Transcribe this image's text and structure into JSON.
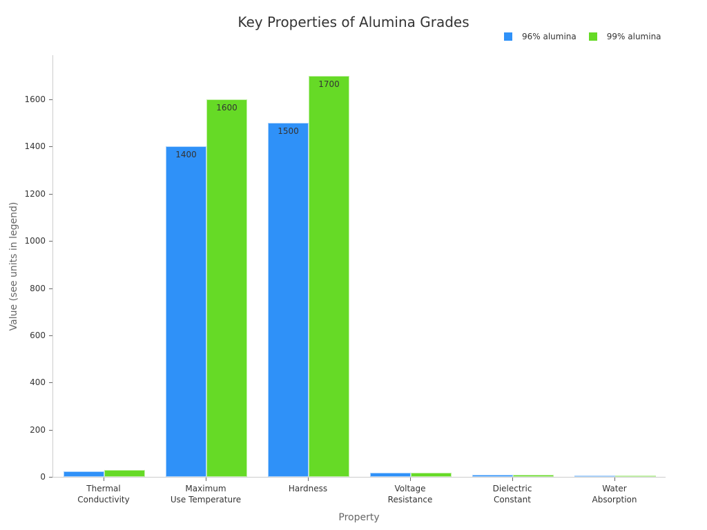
{
  "chart_data": {
    "type": "bar",
    "title": "Key Properties of Alumina Grades",
    "xlabel": "Property",
    "ylabel": "Value (see units in legend)",
    "categories": [
      "Thermal\nConductivity",
      "Maximum\nUse Temperature",
      "Hardness",
      "Voltage\nResistance",
      "Dielectric\nConstant",
      "Water\nAbsorption"
    ],
    "series": [
      {
        "name": "96% alumina",
        "color": "#2f91f8",
        "values": [
          24,
          1400,
          1500,
          17,
          9.5,
          0
        ]
      },
      {
        "name": "99% alumina",
        "color": "#66da26",
        "values": [
          30,
          1600,
          1700,
          18,
          9.8,
          0
        ]
      }
    ],
    "bar_labels_visible": [
      false,
      true,
      true,
      false,
      false,
      false
    ],
    "ylim": [
      0,
      1790
    ],
    "yticks": [
      0,
      200,
      400,
      600,
      800,
      1000,
      1200,
      1400,
      1600
    ],
    "grid": false,
    "legend_position": "top-right"
  }
}
